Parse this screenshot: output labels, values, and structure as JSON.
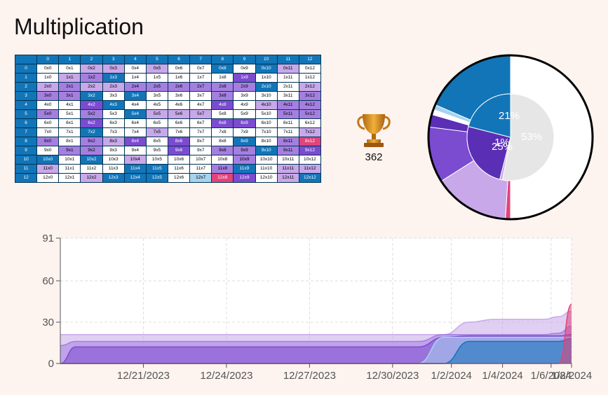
{
  "title": "Multiplication",
  "table": {
    "col_headers": [
      "",
      "0",
      "1",
      "2",
      "3",
      "4",
      "5",
      "6",
      "7",
      "8",
      "9",
      "10",
      "11",
      "12"
    ],
    "row_headers": [
      "0",
      "1",
      "2",
      "3",
      "4",
      "5",
      "6",
      "7",
      "8",
      "9",
      "10",
      "11",
      "12"
    ],
    "levels": [
      [
        0,
        0,
        1,
        1,
        0,
        1,
        0,
        0,
        4,
        0,
        4,
        1,
        0
      ],
      [
        0,
        1,
        2,
        4,
        0,
        0,
        0,
        0,
        0,
        3,
        0,
        0,
        0
      ],
      [
        1,
        2,
        1,
        1,
        2,
        2,
        2,
        2,
        2,
        2,
        4,
        0,
        1
      ],
      [
        2,
        2,
        4,
        0,
        4,
        0,
        0,
        0,
        2,
        0,
        0,
        0,
        2
      ],
      [
        0,
        0,
        3,
        4,
        0,
        0,
        0,
        0,
        3,
        0,
        1,
        2,
        2
      ],
      [
        2,
        0,
        2,
        0,
        4,
        1,
        1,
        1,
        0,
        0,
        0,
        2,
        2
      ],
      [
        0,
        0,
        3,
        0,
        0,
        0,
        0,
        0,
        3,
        3,
        0,
        0,
        0
      ],
      [
        0,
        0,
        4,
        0,
        0,
        1,
        0,
        0,
        0,
        0,
        0,
        0,
        1
      ],
      [
        2,
        0,
        2,
        1,
        3,
        0,
        3,
        0,
        0,
        4,
        0,
        2,
        6
      ],
      [
        0,
        2,
        2,
        0,
        0,
        0,
        3,
        0,
        2,
        2,
        4,
        2,
        3
      ],
      [
        4,
        0,
        4,
        0,
        1,
        0,
        0,
        0,
        0,
        2,
        0,
        0,
        0
      ],
      [
        1,
        0,
        0,
        0,
        4,
        4,
        0,
        0,
        2,
        4,
        0,
        1,
        1
      ],
      [
        0,
        0,
        1,
        4,
        4,
        4,
        0,
        5,
        6,
        3,
        0,
        1,
        4
      ]
    ]
  },
  "trophy": {
    "score": "362"
  },
  "pie": {
    "colors": [
      "#ffffff",
      "#e0447a",
      "#c8a8e9",
      "#7b4bd0",
      "#5a2fb5",
      "#ffffff",
      "#a6d3ee",
      "#1275b8"
    ],
    "outer": [
      {
        "color": "#ffffff",
        "value": 50
      },
      {
        "color": "#e0447a",
        "value": 1
      },
      {
        "color": "#c8a8e9",
        "value": 15
      },
      {
        "color": "#7b4bd0",
        "value": 11
      },
      {
        "color": "#5a2fb5",
        "value": 2.5
      },
      {
        "color": "#ffffff",
        "value": 1
      },
      {
        "color": "#a6d3ee",
        "value": 1
      },
      {
        "color": "#1275b8",
        "value": 18.5
      }
    ],
    "inner": [
      {
        "color": "#e6e6e6",
        "value": 53,
        "label": "53%"
      },
      {
        "color": "#c8a8e9",
        "value": 1,
        "label": "1%"
      },
      {
        "color": "#5a2fb5",
        "value": 25,
        "label": "25%"
      },
      {
        "color": "#1275b8",
        "value": 21,
        "label": "21%"
      }
    ]
  },
  "chart_data": {
    "type": "area",
    "title": "",
    "xlabel": "",
    "ylabel": "",
    "x_ticks": [
      "12/21/2023",
      "12/24/2023",
      "12/27/2023",
      "12/30/2023",
      "1/2/2024",
      "1/4/2024",
      "1/6/2024",
      "1/8/2024"
    ],
    "y_ticks": [
      "0",
      "30",
      "60",
      "91"
    ],
    "ylim": [
      0,
      91
    ],
    "x": [
      0,
      0.6,
      13.0,
      14.0,
      15.0,
      16.0,
      17.0,
      18.0,
      18.9,
      19.5,
      20.0
    ],
    "series": [
      {
        "name": "light-purple",
        "color": "#c8a8e9",
        "values": [
          21,
          21,
          21,
          21,
          21,
          30,
          32,
          32,
          32,
          34,
          38
        ]
      },
      {
        "name": "mid-purple",
        "color": "#a57fe0",
        "values": [
          13,
          16,
          16,
          16,
          21,
          21,
          21,
          21,
          21,
          22,
          27
        ]
      },
      {
        "name": "dark-purple",
        "color": "#7b4bd0",
        "values": [
          0,
          12,
          12,
          12,
          19,
          20,
          20,
          20,
          20,
          20,
          21
        ]
      },
      {
        "name": "light-blue",
        "color": "#a6d3ee",
        "values": [
          0,
          0,
          0,
          0,
          19,
          19,
          19,
          19,
          19,
          19,
          19
        ]
      },
      {
        "name": "blue",
        "color": "#1275b8",
        "values": [
          0,
          0,
          0,
          0,
          0,
          16,
          16,
          16,
          16,
          16,
          18
        ]
      },
      {
        "name": "pink",
        "color": "#e0447a",
        "values": [
          0,
          0,
          0,
          0,
          0,
          0,
          0,
          0,
          0,
          0,
          43
        ]
      }
    ]
  }
}
